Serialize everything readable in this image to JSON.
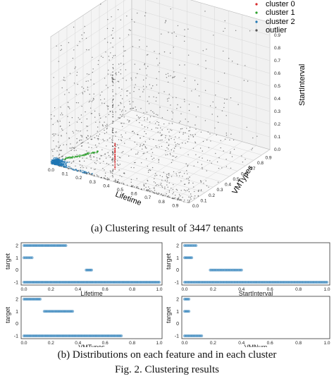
{
  "figure_a": {
    "legend": [
      {
        "label": "cluster 0",
        "color": "#d62728"
      },
      {
        "label": "cluster 1",
        "color": "#2ca02c"
      },
      {
        "label": "cluster 2",
        "color": "#1f77b4"
      },
      {
        "label": "outlier",
        "color": "#555555"
      }
    ],
    "axes": {
      "x": "Lifetime",
      "y": "VMTypes",
      "z": "StartInterval"
    },
    "ticks": {
      "x": [
        "0.0",
        "0.1",
        "0.2",
        "0.3",
        "0.4",
        "0.5",
        "0.6",
        "0.7",
        "0.8",
        "0.9"
      ],
      "y": [
        "0.0",
        "0.1",
        "0.2",
        "0.3",
        "0.4",
        "0.5",
        "0.6",
        "0.7",
        "0.8",
        "0.9"
      ],
      "z": [
        "0.0",
        "0.1",
        "0.2",
        "0.3",
        "0.4",
        "0.5",
        "0.6",
        "0.7",
        "0.8",
        "0.9"
      ]
    },
    "caption": "(a)  Clustering result of 3447 tenants"
  },
  "chart_data": [
    {
      "type": "scatter",
      "xlabel": "Lifetime",
      "ylabel": "target",
      "xlim": [
        0,
        1.0
      ],
      "yticks": [
        "-1",
        "0",
        "1",
        "2"
      ],
      "xticks": [
        "0.0",
        "0.2",
        "0.4",
        "0.6",
        "0.8",
        "1.0"
      ],
      "series": [
        {
          "y": 2,
          "segments": [
            [
              0.0,
              0.31
            ]
          ]
        },
        {
          "y": 1,
          "segments": [
            [
              0.0,
              0.06
            ]
          ]
        },
        {
          "y": 0,
          "segments": [
            [
              0.46,
              0.5
            ]
          ]
        },
        {
          "y": -1,
          "segments": [
            [
              0.0,
              1.0
            ]
          ]
        }
      ]
    },
    {
      "type": "scatter",
      "xlabel": "StartInterval",
      "ylabel": "target",
      "xlim": [
        0,
        1.0
      ],
      "yticks": [
        "-1",
        "0",
        "1",
        "2"
      ],
      "xticks": [
        "0.0",
        "0.2",
        "0.4",
        "0.6",
        "0.8",
        "1.0"
      ],
      "series": [
        {
          "y": 2,
          "segments": [
            [
              0.0,
              0.08
            ]
          ]
        },
        {
          "y": 1,
          "segments": [
            [
              0.0,
              0.05
            ]
          ]
        },
        {
          "y": 0,
          "segments": [
            [
              0.18,
              0.4
            ]
          ]
        },
        {
          "y": -1,
          "segments": [
            [
              0.0,
              1.0
            ]
          ]
        }
      ]
    },
    {
      "type": "scatter",
      "xlabel": "VMTypes",
      "ylabel": "target",
      "xlim": [
        0,
        1.0
      ],
      "yticks": [
        "-1",
        "0",
        "1",
        "2"
      ],
      "xticks": [
        "0.0",
        "0.2",
        "0.4",
        "0.6",
        "0.8",
        "1.0"
      ],
      "series": [
        {
          "y": 2,
          "segments": [
            [
              0.0,
              0.12
            ]
          ]
        },
        {
          "y": 1,
          "segments": [
            [
              0.15,
              0.36
            ]
          ]
        },
        {
          "y": -1,
          "segments": [
            [
              0.0,
              0.72
            ]
          ]
        }
      ]
    },
    {
      "type": "scatter",
      "xlabel": "VMNum",
      "ylabel": "target",
      "xlim": [
        0,
        1.0
      ],
      "yticks": [
        "-1",
        "0",
        "1",
        "2"
      ],
      "xticks": [
        "0.0",
        "0.2",
        "0.4",
        "0.6",
        "0.8",
        "1.0"
      ],
      "series": [
        {
          "y": 2,
          "segments": [
            [
              0.0,
              0.03
            ]
          ]
        },
        {
          "y": 1,
          "segments": [
            [
              0.0,
              0.03
            ]
          ]
        },
        {
          "y": -1,
          "segments": [
            [
              0.0,
              0.12
            ]
          ]
        }
      ]
    }
  ],
  "captions": {
    "b": "(b)  Distributions on each feature and in each cluster",
    "fig": "Fig. 2.   Clustering results"
  }
}
